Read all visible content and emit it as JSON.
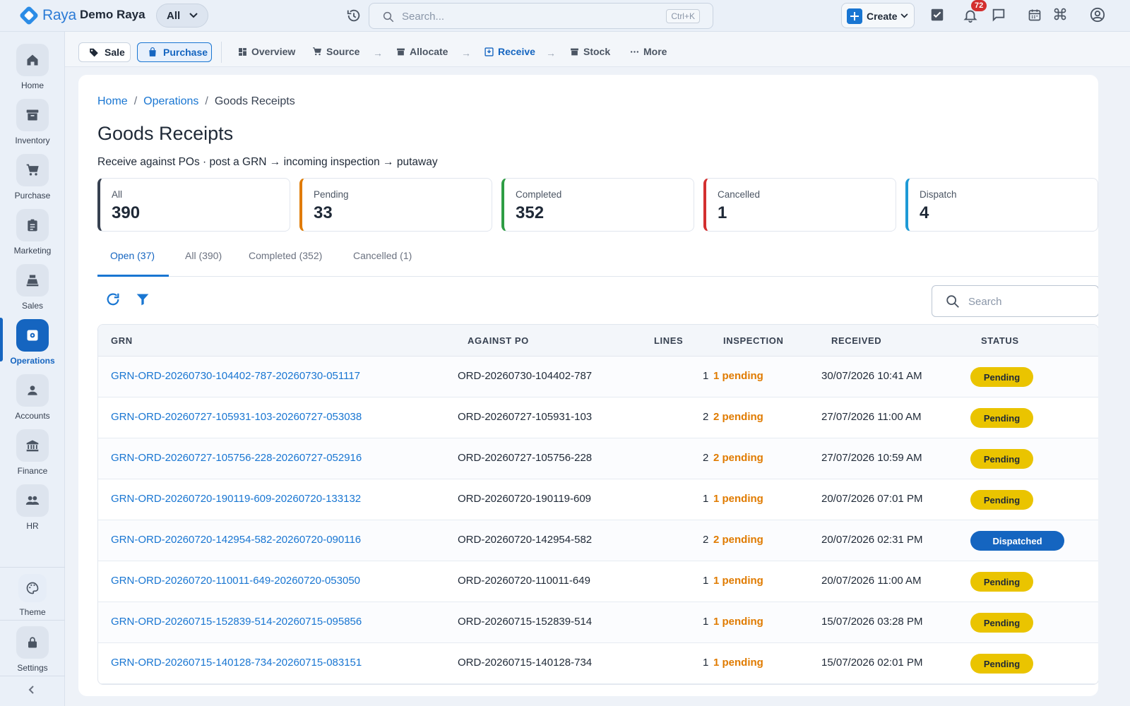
{
  "app": {
    "brand": "Raya",
    "company": "Demo Raya",
    "scope": "All",
    "search_placeholder": "Search...",
    "search_shortcut": "Ctrl+K",
    "create_label": "Create",
    "notifications_count": "72"
  },
  "sidebar": {
    "items": [
      {
        "label": "Home",
        "icon": "home-icon"
      },
      {
        "label": "Inventory",
        "icon": "archive-icon"
      },
      {
        "label": "Purchase",
        "icon": "cart-icon"
      },
      {
        "label": "Marketing",
        "icon": "clipboard-icon"
      },
      {
        "label": "Sales",
        "icon": "register-icon"
      },
      {
        "label": "Operations",
        "icon": "gear-icon"
      },
      {
        "label": "Accounts",
        "icon": "person-icon"
      },
      {
        "label": "Finance",
        "icon": "bank-icon"
      },
      {
        "label": "HR",
        "icon": "people-icon"
      }
    ],
    "theme_label": "Theme",
    "settings_label": "Settings"
  },
  "subnav": {
    "sale": "Sale",
    "purchase": "Purchase",
    "steps": [
      "Overview",
      "Source",
      "Allocate",
      "Receive",
      "Stock",
      "More"
    ]
  },
  "breadcrumb": [
    "Home",
    "Operations",
    "Goods Receipts"
  ],
  "page": {
    "title": "Goods Receipts",
    "subtitle": "Receive against POs · post a GRN → incoming inspection → putaway"
  },
  "stats": [
    {
      "label": "All",
      "value": "390",
      "color": "#374151"
    },
    {
      "label": "Pending",
      "value": "33",
      "color": "#e07b00"
    },
    {
      "label": "Completed",
      "value": "352",
      "color": "#2e9d44"
    },
    {
      "label": "Cancelled",
      "value": "1",
      "color": "#d32f2f"
    },
    {
      "label": "Dispatch",
      "value": "4",
      "color": "#1e9ad6"
    }
  ],
  "tabs": [
    "Open (37)",
    "All (390)",
    "Completed (352)",
    "Cancelled (1)"
  ],
  "table_search_placeholder": "Search",
  "table": {
    "headers": [
      "GRN",
      "AGAINST PO",
      "LINES",
      "INSPECTION",
      "RECEIVED",
      "STATUS"
    ],
    "rows": [
      {
        "grn": "GRN-ORD-20260730-104402-787-20260730-051117",
        "po": "ORD-20260730-104402-787",
        "lines": "1",
        "inspection": "1 pending",
        "received": "30/07/2026 10:41 AM",
        "status": "Pending"
      },
      {
        "grn": "GRN-ORD-20260727-105931-103-20260727-053038",
        "po": "ORD-20260727-105931-103",
        "lines": "2",
        "inspection": "2 pending",
        "received": "27/07/2026 11:00 AM",
        "status": "Pending"
      },
      {
        "grn": "GRN-ORD-20260727-105756-228-20260727-052916",
        "po": "ORD-20260727-105756-228",
        "lines": "2",
        "inspection": "2 pending",
        "received": "27/07/2026 10:59 AM",
        "status": "Pending"
      },
      {
        "grn": "GRN-ORD-20260720-190119-609-20260720-133132",
        "po": "ORD-20260720-190119-609",
        "lines": "1",
        "inspection": "1 pending",
        "received": "20/07/2026 07:01 PM",
        "status": "Pending"
      },
      {
        "grn": "GRN-ORD-20260720-142954-582-20260720-090116",
        "po": "ORD-20260720-142954-582",
        "lines": "2",
        "inspection": "2 pending",
        "received": "20/07/2026 02:31 PM",
        "status": "Dispatched"
      },
      {
        "grn": "GRN-ORD-20260720-110011-649-20260720-053050",
        "po": "ORD-20260720-110011-649",
        "lines": "1",
        "inspection": "1 pending",
        "received": "20/07/2026 11:00 AM",
        "status": "Pending"
      },
      {
        "grn": "GRN-ORD-20260715-152839-514-20260715-095856",
        "po": "ORD-20260715-152839-514",
        "lines": "1",
        "inspection": "1 pending",
        "received": "15/07/2026 03:28 PM",
        "status": "Pending"
      },
      {
        "grn": "GRN-ORD-20260715-140128-734-20260715-083151",
        "po": "ORD-20260715-140128-734",
        "lines": "1",
        "inspection": "1 pending",
        "received": "15/07/2026 02:01 PM",
        "status": "Pending"
      }
    ]
  }
}
